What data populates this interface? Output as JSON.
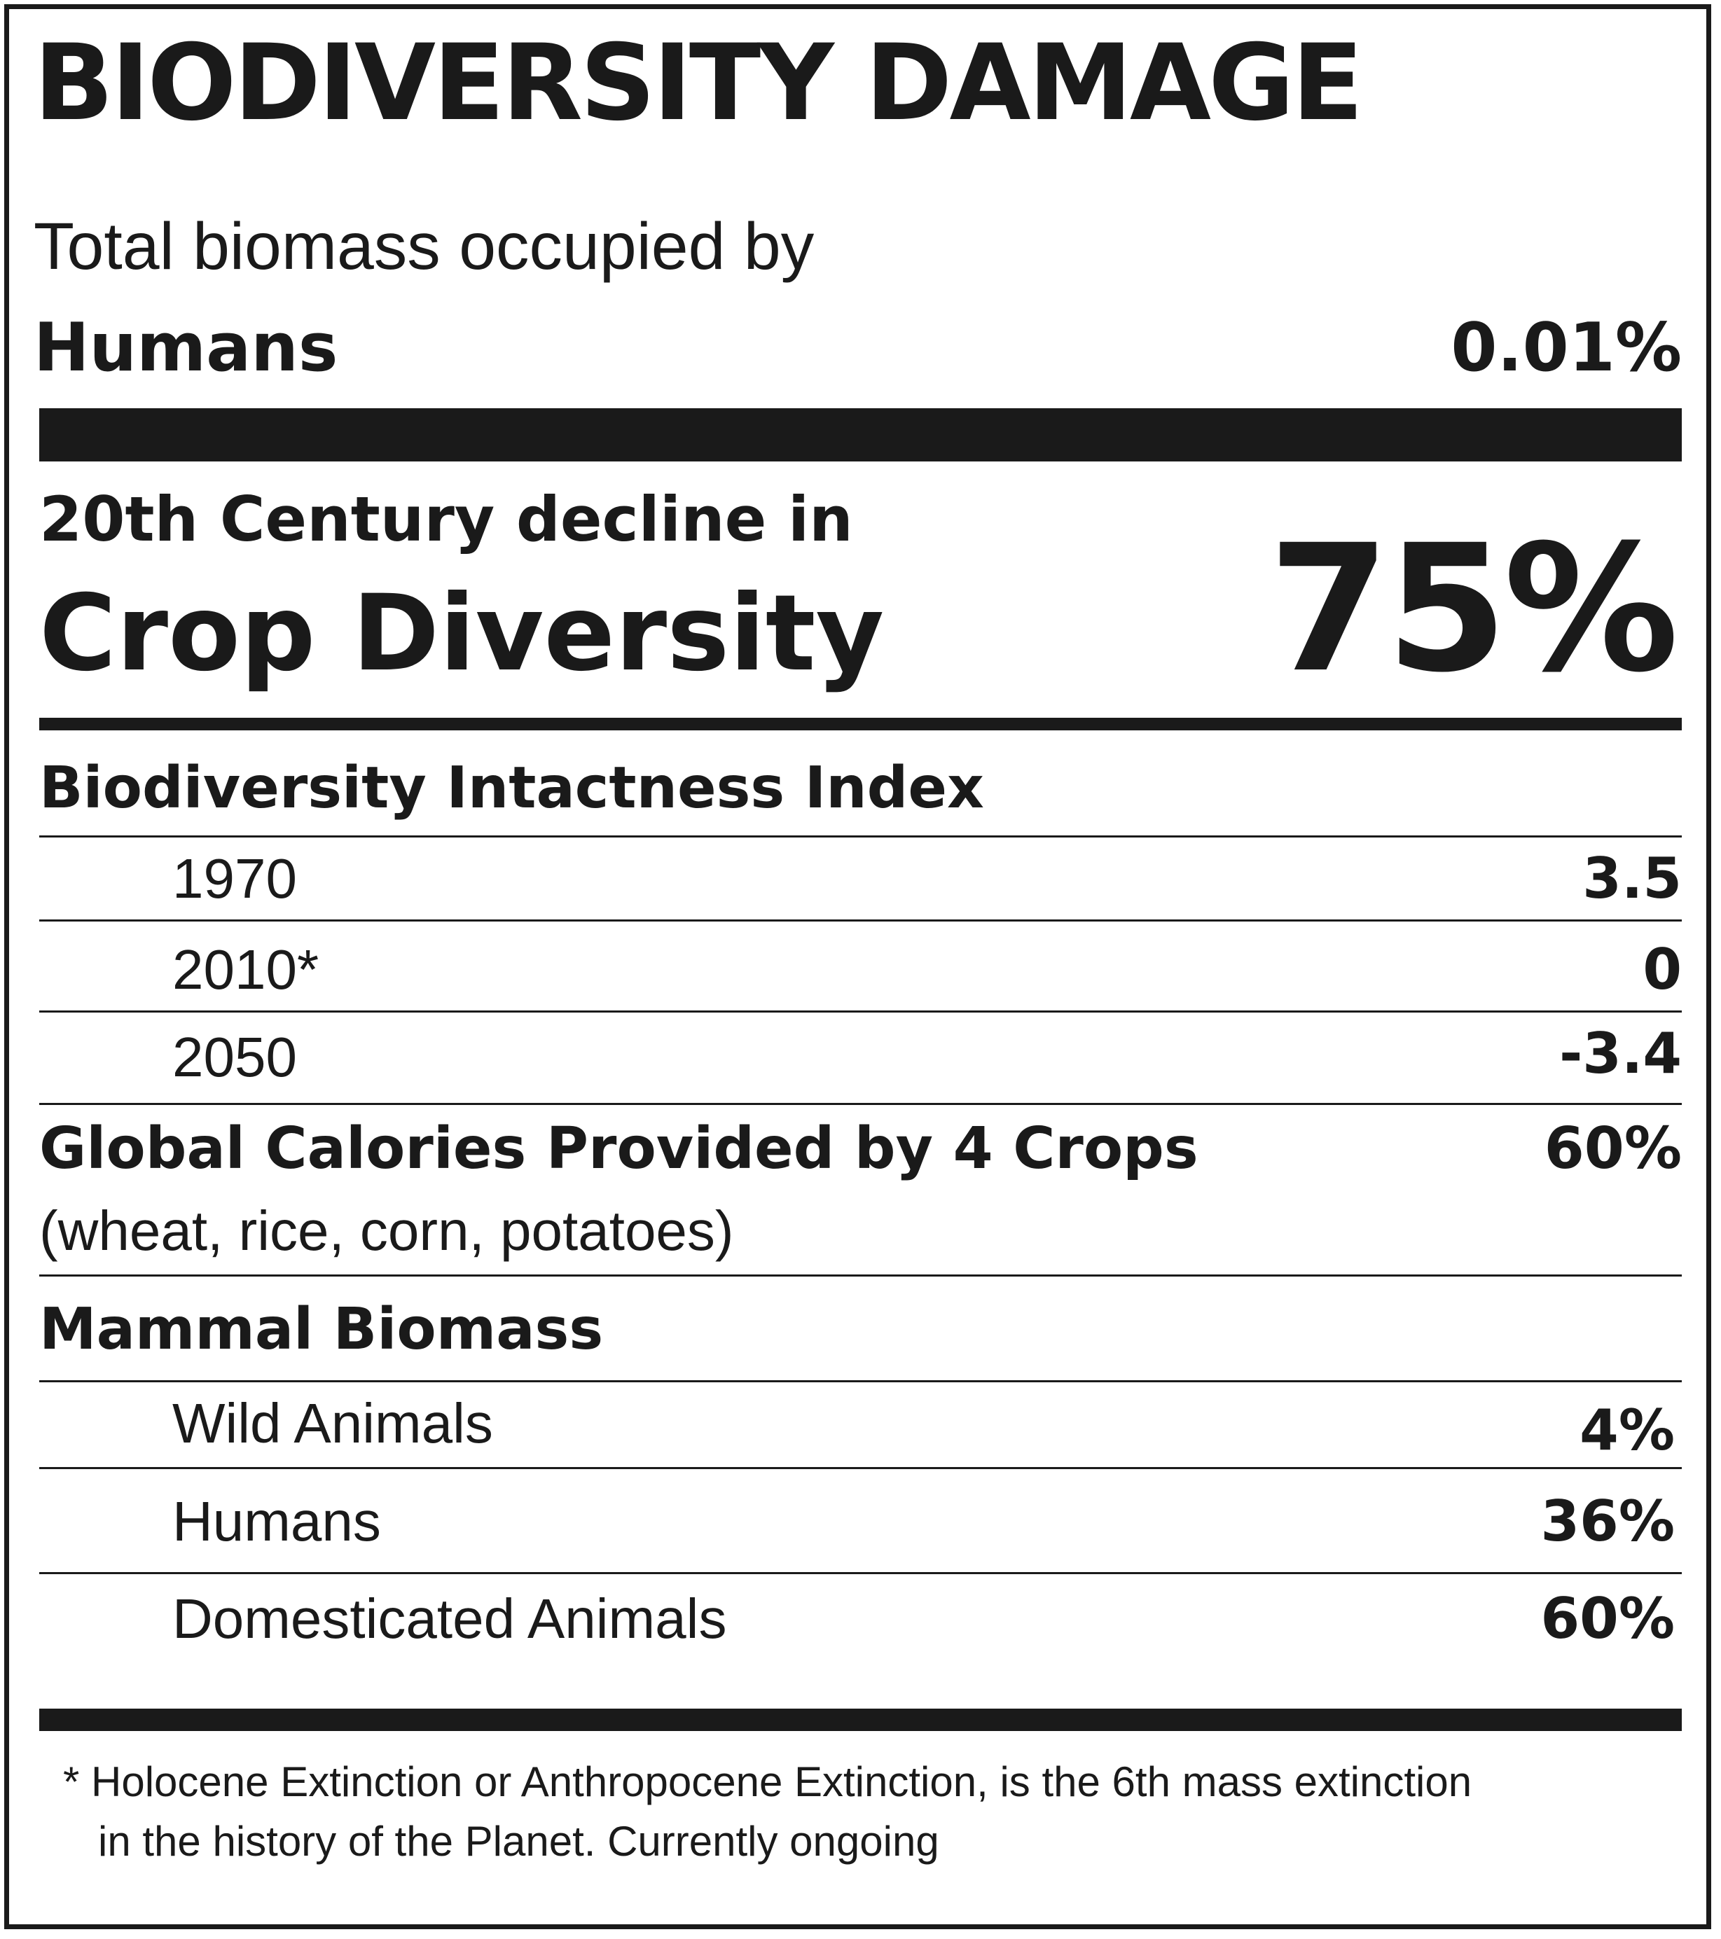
{
  "title": "BIODIVERSITY DAMAGE",
  "biomass": {
    "label_line1": "Total biomass occupied by",
    "label_line2": "Humans",
    "value": "0.01%"
  },
  "crop_diversity": {
    "label_line1": "20th Century decline in",
    "label_line2": "Crop Diversity",
    "value": "75%"
  },
  "intactness": {
    "heading": "Biodiversity Intactness Index",
    "rows": [
      {
        "year": "1970",
        "value": "3.5"
      },
      {
        "year": "2010*",
        "value": "0"
      },
      {
        "year": "2050",
        "value": "-3.4"
      }
    ]
  },
  "calories": {
    "label": "Global Calories Provided by 4 Crops",
    "sub": "(wheat, rice, corn, potatoes)",
    "value": "60%"
  },
  "mammal": {
    "heading": "Mammal Biomass",
    "rows": [
      {
        "label": "Wild Animals",
        "value": "4%"
      },
      {
        "label": "Humans",
        "value": "36%"
      },
      {
        "label": "Domesticated Animals",
        "value": "60%"
      }
    ]
  },
  "footnote": {
    "line1": "* Holocene Extinction or Anthropocene Extinction, is the 6th mass extinction",
    "line2": "in the history of the Planet. Currently ongoing"
  }
}
